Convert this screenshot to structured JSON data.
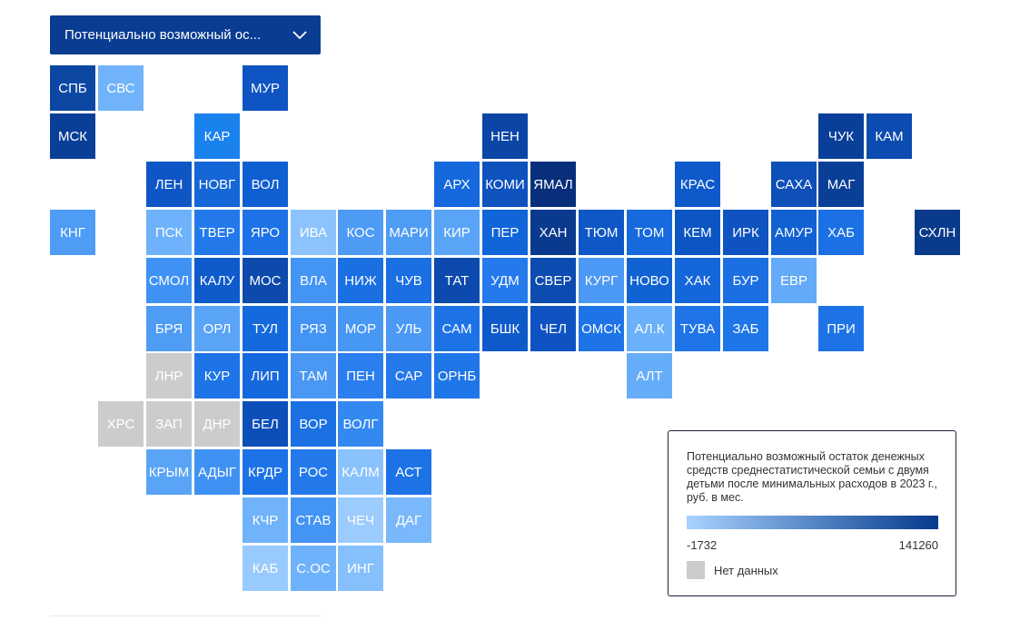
{
  "dropdown": {
    "label": "Потенциально возможный ос...",
    "icon": "chevron-down-icon"
  },
  "legend": {
    "title": "Потенциально возможный остаток денежных средств среднестатистической семьи с двумя детьми после минимальных расходов в 2023 г., руб. в мес.",
    "min": "-1732",
    "max": "141260",
    "gradient_from": "#a9d2ff",
    "gradient_to": "#053a8c",
    "no_data_label": "Нет данных",
    "no_data_color": "#cccccc"
  },
  "tiles": [
    {
      "label": "СПБ",
      "col": 0,
      "row": 0,
      "color": "#0c47a4"
    },
    {
      "label": "СВС",
      "col": 1,
      "row": 0,
      "color": "#70b3fa"
    },
    {
      "label": "МУР",
      "col": 4,
      "row": 0,
      "color": "#0e54c2"
    },
    {
      "label": "МСК",
      "col": 0,
      "row": 1,
      "color": "#0a3f98"
    },
    {
      "label": "КАР",
      "col": 3,
      "row": 1,
      "color": "#1a82ec"
    },
    {
      "label": "НЕН",
      "col": 9,
      "row": 1,
      "color": "#0b46a6"
    },
    {
      "label": "ЧУК",
      "col": 16,
      "row": 1,
      "color": "#0a3f99"
    },
    {
      "label": "КАМ",
      "col": 17,
      "row": 1,
      "color": "#0c4bb0"
    },
    {
      "label": "ЛЕН",
      "col": 2,
      "row": 2,
      "color": "#0e56c6"
    },
    {
      "label": "НОВГ",
      "col": 3,
      "row": 2,
      "color": "#1566d6"
    },
    {
      "label": "ВОЛ",
      "col": 4,
      "row": 2,
      "color": "#0f5fd2"
    },
    {
      "label": "АРХ",
      "col": 8,
      "row": 2,
      "color": "#1468dc"
    },
    {
      "label": "КОМИ",
      "col": 9,
      "row": 2,
      "color": "#0e52be"
    },
    {
      "label": "ЯМАЛ",
      "col": 10,
      "row": 2,
      "color": "#082f7c"
    },
    {
      "label": "КРАС",
      "col": 13,
      "row": 2,
      "color": "#0f5acb"
    },
    {
      "label": "САХА",
      "col": 15,
      "row": 2,
      "color": "#0e4fb8"
    },
    {
      "label": "МАГ",
      "col": 16,
      "row": 2,
      "color": "#0a3f98"
    },
    {
      "label": "КНГ",
      "col": 0,
      "row": 3,
      "color": "#4e9cf5"
    },
    {
      "label": "ПСК",
      "col": 2,
      "row": 3,
      "color": "#6eb2fb"
    },
    {
      "label": "ТВЕР",
      "col": 3,
      "row": 3,
      "color": "#2479ea"
    },
    {
      "label": "ЯРО",
      "col": 4,
      "row": 3,
      "color": "#1c72e6"
    },
    {
      "label": "ИВА",
      "col": 5,
      "row": 3,
      "color": "#8cc3fd"
    },
    {
      "label": "КОС",
      "col": 6,
      "row": 3,
      "color": "#4d9bf5"
    },
    {
      "label": "МАРИ",
      "col": 7,
      "row": 3,
      "color": "#4f9cf4"
    },
    {
      "label": "КИР",
      "col": 8,
      "row": 3,
      "color": "#5aa4f7"
    },
    {
      "label": "ПЕР",
      "col": 9,
      "row": 3,
      "color": "#1065d8"
    },
    {
      "label": "ХАН",
      "col": 10,
      "row": 3,
      "color": "#0a3a8e"
    },
    {
      "label": "ТЮМ",
      "col": 11,
      "row": 3,
      "color": "#0f57c7"
    },
    {
      "label": "ТОМ",
      "col": 12,
      "row": 3,
      "color": "#166add"
    },
    {
      "label": "КЕМ",
      "col": 13,
      "row": 3,
      "color": "#0e55c4"
    },
    {
      "label": "ИРК",
      "col": 14,
      "row": 3,
      "color": "#0e53c0"
    },
    {
      "label": "АМУР",
      "col": 15,
      "row": 3,
      "color": "#1161d3"
    },
    {
      "label": "ХАБ",
      "col": 16,
      "row": 3,
      "color": "#1b70e5"
    },
    {
      "label": "СХЛН",
      "col": 18,
      "row": 3,
      "color": "#093a8c"
    },
    {
      "label": "СМОЛ",
      "col": 2,
      "row": 4,
      "color": "#3f92f3"
    },
    {
      "label": "КАЛУ",
      "col": 3,
      "row": 4,
      "color": "#0f5bcc"
    },
    {
      "label": "МОС",
      "col": 4,
      "row": 4,
      "color": "#0c4aac"
    },
    {
      "label": "ВЛА",
      "col": 5,
      "row": 4,
      "color": "#4494f4"
    },
    {
      "label": "НИЖ",
      "col": 6,
      "row": 4,
      "color": "#1a6fe3"
    },
    {
      "label": "ЧУВ",
      "col": 7,
      "row": 4,
      "color": "#1a6fe2"
    },
    {
      "label": "ТАТ",
      "col": 8,
      "row": 4,
      "color": "#0c4aae"
    },
    {
      "label": "УДМ",
      "col": 9,
      "row": 4,
      "color": "#247aec"
    },
    {
      "label": "СВЕР",
      "col": 10,
      "row": 4,
      "color": "#0c4bb0"
    },
    {
      "label": "КУРГ",
      "col": 11,
      "row": 4,
      "color": "#4b99f5"
    },
    {
      "label": "НОВО",
      "col": 12,
      "row": 4,
      "color": "#1163d4"
    },
    {
      "label": "ХАК",
      "col": 13,
      "row": 4,
      "color": "#1566da"
    },
    {
      "label": "БУР",
      "col": 14,
      "row": 4,
      "color": "#1b6fe3"
    },
    {
      "label": "ЕВР",
      "col": 15,
      "row": 4,
      "color": "#63aaf8"
    },
    {
      "label": "БРЯ",
      "col": 2,
      "row": 5,
      "color": "#4f9cf5"
    },
    {
      "label": "ОРЛ",
      "col": 3,
      "row": 5,
      "color": "#5aa4f7"
    },
    {
      "label": "ТУЛ",
      "col": 4,
      "row": 5,
      "color": "#1469dc"
    },
    {
      "label": "РЯЗ",
      "col": 5,
      "row": 5,
      "color": "#4494f4"
    },
    {
      "label": "МОР",
      "col": 6,
      "row": 5,
      "color": "#4797f4"
    },
    {
      "label": "УЛЬ",
      "col": 7,
      "row": 5,
      "color": "#4b99f5"
    },
    {
      "label": "САМ",
      "col": 8,
      "row": 5,
      "color": "#1d73e6"
    },
    {
      "label": "БШК",
      "col": 9,
      "row": 5,
      "color": "#0f5acb"
    },
    {
      "label": "ЧЕЛ",
      "col": 10,
      "row": 5,
      "color": "#0e53c1"
    },
    {
      "label": "ОМСК",
      "col": 11,
      "row": 5,
      "color": "#1e74e7"
    },
    {
      "label": "АЛ.К",
      "col": 12,
      "row": 5,
      "color": "#6bb0fa"
    },
    {
      "label": "ТУВА",
      "col": 13,
      "row": 5,
      "color": "#1f75e8"
    },
    {
      "label": "ЗАБ",
      "col": 14,
      "row": 5,
      "color": "#1f76e8"
    },
    {
      "label": "ПРИ",
      "col": 16,
      "row": 5,
      "color": "#1d73e6"
    },
    {
      "label": "ЛНР",
      "col": 2,
      "row": 6,
      "color": "#cccccc"
    },
    {
      "label": "КУР",
      "col": 3,
      "row": 6,
      "color": "#1e74e7"
    },
    {
      "label": "ЛИП",
      "col": 4,
      "row": 6,
      "color": "#1668de"
    },
    {
      "label": "ТАМ",
      "col": 5,
      "row": 6,
      "color": "#4a98f4"
    },
    {
      "label": "ПЕН",
      "col": 6,
      "row": 6,
      "color": "#2a7eee"
    },
    {
      "label": "САР",
      "col": 7,
      "row": 6,
      "color": "#2479ea"
    },
    {
      "label": "ОРНБ",
      "col": 8,
      "row": 6,
      "color": "#1f76e8"
    },
    {
      "label": "АЛТ",
      "col": 12,
      "row": 6,
      "color": "#66adf9"
    },
    {
      "label": "ХРС",
      "col": 1,
      "row": 7,
      "color": "#cccccc"
    },
    {
      "label": "ЗАП",
      "col": 2,
      "row": 7,
      "color": "#cccccc"
    },
    {
      "label": "ДНР",
      "col": 3,
      "row": 7,
      "color": "#cccccc"
    },
    {
      "label": "БЕЛ",
      "col": 4,
      "row": 7,
      "color": "#0d4fb8"
    },
    {
      "label": "ВОР",
      "col": 5,
      "row": 7,
      "color": "#1b71e4"
    },
    {
      "label": "ВОЛГ",
      "col": 6,
      "row": 7,
      "color": "#3489f1"
    },
    {
      "label": "КРЫМ",
      "col": 2,
      "row": 8,
      "color": "#5aa4f7"
    },
    {
      "label": "АДЫГ",
      "col": 3,
      "row": 8,
      "color": "#3f92f3"
    },
    {
      "label": "КРДР",
      "col": 4,
      "row": 8,
      "color": "#1c72e6"
    },
    {
      "label": "РОС",
      "col": 5,
      "row": 8,
      "color": "#2479ea"
    },
    {
      "label": "КАЛМ",
      "col": 6,
      "row": 8,
      "color": "#8ac2fd"
    },
    {
      "label": "АСТ",
      "col": 7,
      "row": 8,
      "color": "#1d73e6"
    },
    {
      "label": "КЧР",
      "col": 4,
      "row": 9,
      "color": "#70b3fa"
    },
    {
      "label": "СТАВ",
      "col": 5,
      "row": 9,
      "color": "#4394f3"
    },
    {
      "label": "ЧЕЧ",
      "col": 6,
      "row": 9,
      "color": "#9ccbfe"
    },
    {
      "label": "ДАГ",
      "col": 7,
      "row": 9,
      "color": "#79b8fb"
    },
    {
      "label": "КАБ",
      "col": 4,
      "row": 10,
      "color": "#99cafe"
    },
    {
      "label": "С.ОС",
      "col": 5,
      "row": 10,
      "color": "#6eb2fb"
    },
    {
      "label": "ИНГ",
      "col": 6,
      "row": 10,
      "color": "#85c0fd"
    }
  ]
}
